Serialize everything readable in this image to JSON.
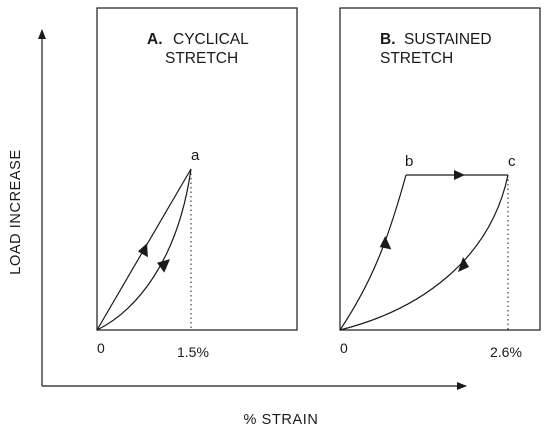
{
  "axes": {
    "x_label": "% STRAIN",
    "y_label": "LOAD INCREASE"
  },
  "panel_a": {
    "letter": "A.",
    "title_line1": "CYCLICAL",
    "title_line2": "STRETCH",
    "origin_label": "0",
    "strain_label": "1.5%",
    "peak_label": "a"
  },
  "panel_b": {
    "letter": "B.",
    "title_line1": "SUSTAINED",
    "title_line2": "STRETCH",
    "origin_label": "0",
    "strain_label": "2.6%",
    "point_b_label": "b",
    "point_c_label": "c"
  }
}
